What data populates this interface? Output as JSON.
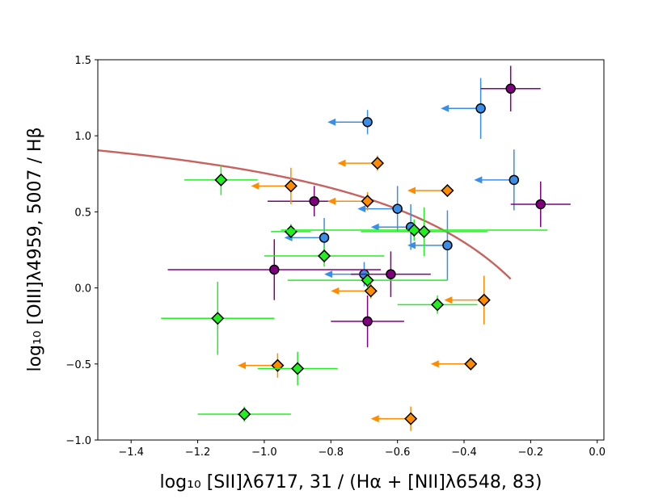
{
  "chart_data": {
    "type": "scatter",
    "xlabel": "log₁₀ [SII]λ6717, 31 / (Hα + [NII]λ6548, 83)",
    "ylabel": "log₁₀ [OIII]λ4959, 5007 / Hβ",
    "xlim": [
      -1.5,
      0.02
    ],
    "ylim": [
      -1.0,
      1.5
    ],
    "xticks": [
      -1.4,
      -1.2,
      -1.0,
      -0.8,
      -0.6,
      -0.4,
      -0.2,
      0.0
    ],
    "xtick_labels": [
      "−1.4",
      "−1.2",
      "−1.0",
      "−0.8",
      "−0.6",
      "−0.4",
      "−0.2",
      "0.0"
    ],
    "yticks": [
      -1.0,
      -0.5,
      0.0,
      0.5,
      1.0,
      1.5
    ],
    "ytick_labels": [
      "−1.0",
      "−0.5",
      "0.0",
      "0.5",
      "1.0",
      "1.5"
    ],
    "grid": false,
    "curve": {
      "name": "demarcation",
      "color": "#c8625e",
      "formula": "y = 0.72/(x - 0.32) + 1.30",
      "x_start": -1.5,
      "x_end": -0.26
    },
    "series": [
      {
        "name": "blue",
        "marker": "circle",
        "color": "#3a8ee8",
        "points": [
          {
            "x": -0.69,
            "y": 1.09,
            "yerr": 0.08,
            "upper_limit_x": 0.12
          },
          {
            "x": -0.35,
            "y": 1.18,
            "yerr": 0.2,
            "upper_limit_x": 0.12
          },
          {
            "x": -0.25,
            "y": 0.71,
            "yerr": 0.2,
            "upper_limit_x": 0.12
          },
          {
            "x": -0.6,
            "y": 0.52,
            "yerr": 0.15,
            "upper_limit_x": 0.12
          },
          {
            "x": -0.56,
            "y": 0.4,
            "yerr": 0.15,
            "upper_limit_x": 0.12
          },
          {
            "x": -0.45,
            "y": 0.28,
            "yerr": 0.23,
            "upper_limit_x": 0.12
          },
          {
            "x": -0.82,
            "y": 0.33,
            "yerr": 0.13,
            "upper_limit_x": 0.12
          },
          {
            "x": -0.7,
            "y": 0.09,
            "yerr": 0.08,
            "upper_limit_x": 0.12
          }
        ]
      },
      {
        "name": "purple",
        "marker": "circle",
        "color": "#800080",
        "points": [
          {
            "x": -0.26,
            "y": 1.31,
            "xerr": 0.09,
            "yerr": 0.15
          },
          {
            "x": -0.17,
            "y": 0.55,
            "xerr": 0.09,
            "yerr": 0.15
          },
          {
            "x": -0.85,
            "y": 0.57,
            "xerr": 0.14,
            "yerr": 0.1
          },
          {
            "x": -0.97,
            "y": 0.12,
            "xerr": 0.32,
            "yerr": 0.2
          },
          {
            "x": -0.62,
            "y": 0.09,
            "xerr": 0.12,
            "yerr": 0.15
          },
          {
            "x": -0.69,
            "y": -0.22,
            "xerr": 0.11,
            "yerr": 0.17
          }
        ]
      },
      {
        "name": "orange",
        "marker": "diamond",
        "color": "#ff8c00",
        "points": [
          {
            "x": -0.66,
            "y": 0.82,
            "yerr": 0.05,
            "upper_limit_x": 0.12
          },
          {
            "x": -0.45,
            "y": 0.64,
            "yerr": 0.03,
            "upper_limit_x": 0.12
          },
          {
            "x": -0.92,
            "y": 0.67,
            "yerr": 0.12,
            "upper_limit_x": 0.12
          },
          {
            "x": -0.69,
            "y": 0.57,
            "yerr": 0.06,
            "upper_limit_x": 0.12
          },
          {
            "x": -0.68,
            "y": -0.02,
            "yerr": 0.05,
            "upper_limit_x": 0.12
          },
          {
            "x": -0.34,
            "y": -0.08,
            "yerr": 0.16,
            "upper_limit_x": 0.12
          },
          {
            "x": -0.38,
            "y": -0.5,
            "yerr": 0.03,
            "upper_limit_x": 0.12
          },
          {
            "x": -0.96,
            "y": -0.51,
            "yerr": 0.08,
            "upper_limit_x": 0.12
          },
          {
            "x": -0.56,
            "y": -0.86,
            "yerr": 0.08,
            "upper_limit_x": 0.12
          }
        ]
      },
      {
        "name": "green",
        "marker": "diamond",
        "color": "#22ee22",
        "points": [
          {
            "x": -1.13,
            "y": 0.71,
            "xerr": 0.11,
            "yerr": 0.1
          },
          {
            "x": -0.92,
            "y": 0.37,
            "xerr": 0.06,
            "yerr": 0.05
          },
          {
            "x": -0.82,
            "y": 0.21,
            "xerr": 0.18,
            "yerr": 0.07
          },
          {
            "x": -0.69,
            "y": 0.05,
            "xerr": 0.24,
            "yerr": 0.05
          },
          {
            "x": -0.55,
            "y": 0.38,
            "xerr": 0.4,
            "yerr": 0.07
          },
          {
            "x": -0.52,
            "y": 0.37,
            "xerr": 0.19,
            "yerr": 0.16
          },
          {
            "x": -0.48,
            "y": -0.11,
            "xerr": 0.12,
            "yerr": 0.06
          },
          {
            "x": -1.14,
            "y": -0.2,
            "xerr": 0.17,
            "yerr": 0.24
          },
          {
            "x": -0.9,
            "y": -0.53,
            "xerr": 0.12,
            "yerr": 0.11
          },
          {
            "x": -1.06,
            "y": -0.83,
            "xerr": 0.14,
            "yerr": 0.05
          }
        ]
      }
    ]
  }
}
